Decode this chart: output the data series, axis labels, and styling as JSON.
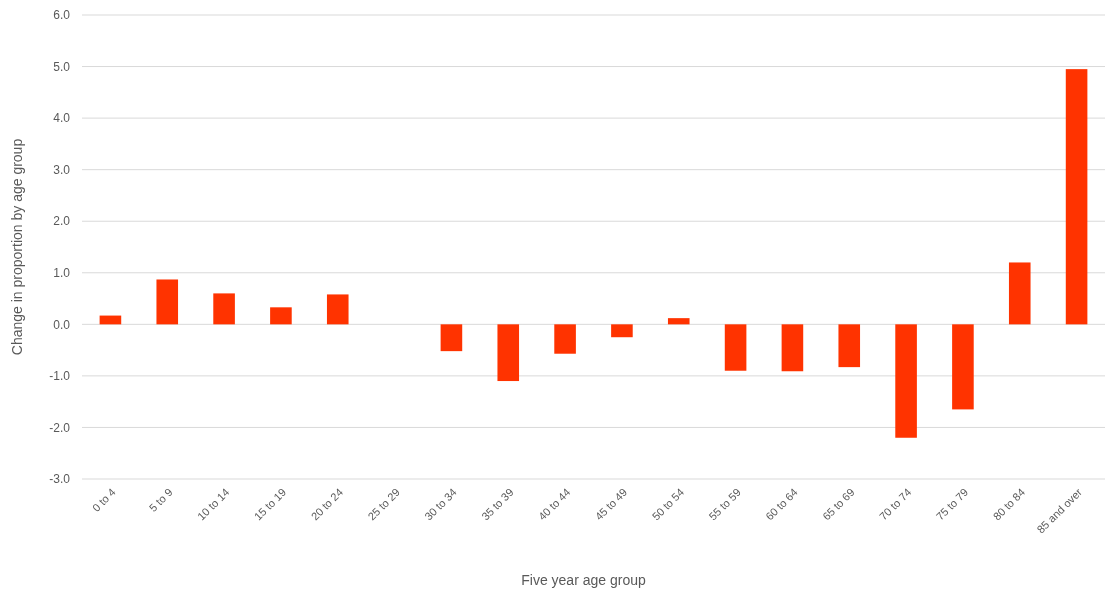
{
  "chart_data": {
    "type": "bar",
    "xlabel": "Five year age group",
    "ylabel": "Change in proportion by age group",
    "categories": [
      "0 to 4",
      "5 to 9",
      "10 to 14",
      "15 to 19",
      "20 to 24",
      "25 to 29",
      "30 to 34",
      "35 to 39",
      "40 to 44",
      "45 to 49",
      "50 to 54",
      "55 to 59",
      "60 to 64",
      "65 to 69",
      "70 to 74",
      "75 to 79",
      "80 to 84",
      "85 and over"
    ],
    "values": [
      0.17,
      0.87,
      0.6,
      0.33,
      0.58,
      0,
      -0.52,
      -1.1,
      -0.57,
      -0.25,
      0.12,
      -0.9,
      -0.91,
      -0.83,
      -2.2,
      -1.65,
      1.2,
      4.95
    ],
    "color": "#ff3300",
    "ylim": [
      -3,
      6
    ],
    "yticks": [
      {
        "value": -3,
        "label": "-3.0"
      },
      {
        "value": -2,
        "label": "-2.0"
      },
      {
        "value": -1,
        "label": "-1.0"
      },
      {
        "value": 0,
        "label": "0.0"
      },
      {
        "value": 1,
        "label": "1.0"
      },
      {
        "value": 2,
        "label": "2.0"
      },
      {
        "value": 3,
        "label": "3.0"
      },
      {
        "value": 4,
        "label": "4.0"
      },
      {
        "value": 5,
        "label": "5.0"
      },
      {
        "value": 6,
        "label": "6.0"
      }
    ],
    "grid": "y"
  }
}
